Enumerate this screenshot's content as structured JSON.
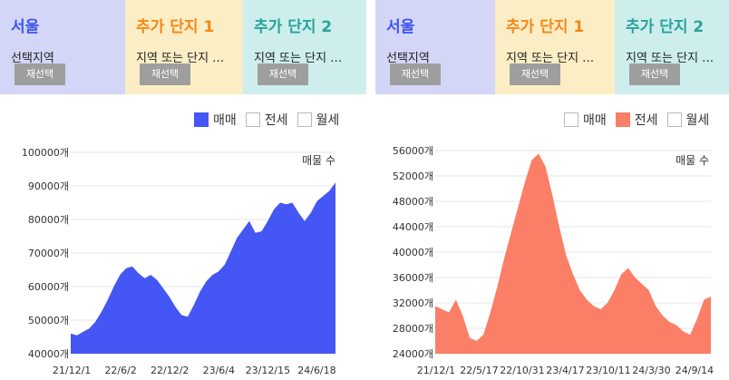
{
  "colors": {
    "seoul_bg": "#d3d6f7",
    "complex1_bg": "#fbedc4",
    "complex2_bg": "#cdeeed",
    "seoul_title": "#3f54f0",
    "complex1_title": "#f5891a",
    "complex2_title": "#2aa39a",
    "sale": "#4456f4",
    "jeonse": "#fa7f66"
  },
  "left": {
    "regions": [
      {
        "title": "서울",
        "subtitle": "선택지역",
        "button": "재선택"
      },
      {
        "title": "추가 단지 1",
        "subtitle": "지역 또는 단지 …",
        "button": "재선택"
      },
      {
        "title": "추가 단지 2",
        "subtitle": "지역 또는 단지 …",
        "button": "재선택"
      }
    ],
    "legend": [
      {
        "label": "매매",
        "checked": true
      },
      {
        "label": "전세",
        "checked": false
      },
      {
        "label": "월세",
        "checked": false
      }
    ]
  },
  "right": {
    "regions": [
      {
        "title": "서울",
        "subtitle": "선택지역",
        "button": "재선택"
      },
      {
        "title": "추가 단지 1",
        "subtitle": "지역 또는 단지 …",
        "button": "재선택"
      },
      {
        "title": "추가 단지 2",
        "subtitle": "지역 또는 단지 …",
        "button": "재선택"
      }
    ],
    "legend": [
      {
        "label": "매매",
        "checked": false
      },
      {
        "label": "전세",
        "checked": true
      },
      {
        "label": "월세",
        "checked": false
      }
    ]
  },
  "chart_data": [
    {
      "type": "area",
      "series_label": "매물 수",
      "color": "#4456f4",
      "ylim": [
        40000,
        100000
      ],
      "yticks": [
        40000,
        50000,
        60000,
        70000,
        80000,
        90000,
        100000
      ],
      "ytick_labels": [
        "40000개",
        "50000개",
        "60000개",
        "70000개",
        "80000개",
        "90000개",
        "100000개"
      ],
      "xtick_labels": [
        "21/12/1",
        "22/6/2",
        "22/12/2",
        "23/6/4",
        "23/12/15",
        "24/6/18"
      ],
      "grid": true,
      "points": [
        46000,
        45500,
        46500,
        47500,
        49500,
        52500,
        56000,
        60000,
        63500,
        65500,
        66000,
        64000,
        62500,
        63500,
        62000,
        59500,
        57000,
        54000,
        51500,
        51000,
        54500,
        58500,
        61500,
        63500,
        64500,
        66500,
        70500,
        74500,
        77000,
        79500,
        76000,
        76500,
        79500,
        83000,
        85000,
        84500,
        85000,
        82000,
        79500,
        82000,
        85500,
        87000,
        88500,
        91000
      ]
    },
    {
      "type": "area",
      "series_label": "매물 수",
      "color": "#fa7f66",
      "ylim": [
        24000,
        56000
      ],
      "yticks": [
        24000,
        28000,
        32000,
        36000,
        40000,
        44000,
        48000,
        52000,
        56000
      ],
      "ytick_labels": [
        "24000개",
        "28000개",
        "32000개",
        "36000개",
        "40000개",
        "44000개",
        "48000개",
        "52000개",
        "56000개"
      ],
      "xtick_labels": [
        "21/12/1",
        "22/5/17",
        "22/10/31",
        "23/4/17",
        "23/10/11",
        "24/3/30",
        "24/9/14"
      ],
      "grid": true,
      "points": [
        31500,
        31000,
        30500,
        32500,
        30000,
        26500,
        26000,
        27000,
        30500,
        34500,
        39000,
        43000,
        47000,
        51000,
        54500,
        55500,
        53500,
        49000,
        44000,
        39500,
        36500,
        34000,
        32500,
        31500,
        31000,
        32000,
        34000,
        36500,
        37500,
        36000,
        35000,
        34000,
        31500,
        30000,
        29000,
        28500,
        27500,
        27000,
        29500,
        32500,
        33000
      ]
    }
  ]
}
